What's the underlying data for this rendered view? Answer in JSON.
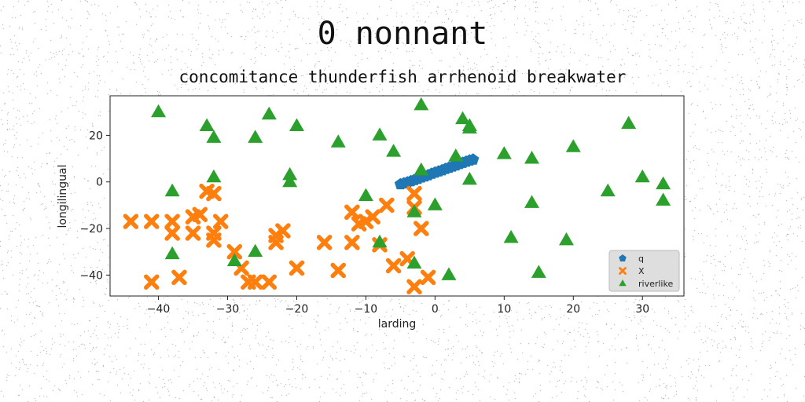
{
  "title": "0 nonnant",
  "subtitle": "concomitance thunderfish arrhenoid breakwater",
  "chart_data": {
    "type": "scatter",
    "xlabel": "larding",
    "ylabel": "longilingual",
    "xlim": [
      -47,
      36
    ],
    "ylim": [
      -49,
      37
    ],
    "xticks": [
      -40,
      -30,
      -20,
      -10,
      0,
      10,
      20,
      30
    ],
    "yticks": [
      -40,
      -20,
      0,
      20
    ],
    "grid": false,
    "legend_position": "lower-right",
    "colors": {
      "q": "#1f77b4",
      "X": "#ff7f0e",
      "riverlike": "#2ca02c"
    },
    "series": [
      {
        "name": "q",
        "marker": "pentagon",
        "points": [
          [
            -5,
            -1
          ],
          [
            -4.5,
            -0.6
          ],
          [
            -4,
            -0.2
          ],
          [
            -3.5,
            0.3
          ],
          [
            -3,
            0.8
          ],
          [
            -2.5,
            1.3
          ],
          [
            -2,
            1.9
          ],
          [
            -1.5,
            2.4
          ],
          [
            -1,
            2.9
          ],
          [
            -0.5,
            3.5
          ],
          [
            0,
            4
          ],
          [
            0.5,
            4.5
          ],
          [
            1,
            5
          ],
          [
            1.5,
            5.6
          ],
          [
            2,
            6.1
          ],
          [
            2.5,
            6.6
          ],
          [
            3,
            7.1
          ],
          [
            3.5,
            7.7
          ],
          [
            4,
            8.2
          ],
          [
            4.5,
            8.7
          ],
          [
            5,
            9.2
          ],
          [
            5.5,
            9.6
          ]
        ]
      },
      {
        "name": "X",
        "marker": "x-thick",
        "points": [
          [
            -44,
            -17
          ],
          [
            -41,
            -17
          ],
          [
            -41,
            -43
          ],
          [
            -38,
            -17
          ],
          [
            -38,
            -22
          ],
          [
            -37,
            -41
          ],
          [
            -35,
            -15
          ],
          [
            -35,
            -22
          ],
          [
            -34,
            -14
          ],
          [
            -33,
            -4
          ],
          [
            -32,
            -5
          ],
          [
            -32,
            -22
          ],
          [
            -32,
            -25
          ],
          [
            -31,
            -17
          ],
          [
            -29,
            -30
          ],
          [
            -28,
            -37
          ],
          [
            -27,
            -43
          ],
          [
            -26,
            -43
          ],
          [
            -24,
            -43
          ],
          [
            -23,
            -23
          ],
          [
            -23,
            -26
          ],
          [
            -22,
            -21
          ],
          [
            -20,
            -37
          ],
          [
            -16,
            -26
          ],
          [
            -14,
            -38
          ],
          [
            -12,
            -13
          ],
          [
            -12,
            -26
          ],
          [
            -11,
            -18
          ],
          [
            -10,
            -17
          ],
          [
            -9,
            -15
          ],
          [
            -8,
            -27
          ],
          [
            -7,
            -10
          ],
          [
            -6,
            -36
          ],
          [
            -4,
            -33
          ],
          [
            -3,
            -5
          ],
          [
            -3,
            -11
          ],
          [
            -3,
            -45
          ],
          [
            -2,
            -20
          ],
          [
            -1,
            -41
          ]
        ]
      },
      {
        "name": "riverlike",
        "marker": "triangle",
        "points": [
          [
            -40,
            30
          ],
          [
            -38,
            -4
          ],
          [
            -38,
            -31
          ],
          [
            -33,
            24
          ],
          [
            -32,
            19
          ],
          [
            -32,
            2
          ],
          [
            -29,
            -34
          ],
          [
            -26,
            19
          ],
          [
            -26,
            -30
          ],
          [
            -24,
            29
          ],
          [
            -21,
            3
          ],
          [
            -21,
            0
          ],
          [
            -20,
            24
          ],
          [
            -14,
            17
          ],
          [
            -10,
            -6
          ],
          [
            -8,
            20
          ],
          [
            -8,
            -26
          ],
          [
            -6,
            13
          ],
          [
            -3,
            -13
          ],
          [
            -3,
            -35
          ],
          [
            -2,
            33
          ],
          [
            -2,
            5
          ],
          [
            0,
            -10
          ],
          [
            2,
            -40
          ],
          [
            3,
            11
          ],
          [
            4,
            27
          ],
          [
            5,
            24
          ],
          [
            5,
            23
          ],
          [
            5,
            1
          ],
          [
            10,
            12
          ],
          [
            11,
            -24
          ],
          [
            14,
            10
          ],
          [
            14,
            -9
          ],
          [
            15,
            -39
          ],
          [
            19,
            -25
          ],
          [
            20,
            15
          ],
          [
            25,
            -4
          ],
          [
            28,
            25
          ],
          [
            30,
            2
          ],
          [
            33,
            -1
          ],
          [
            33,
            -8
          ]
        ]
      }
    ]
  }
}
